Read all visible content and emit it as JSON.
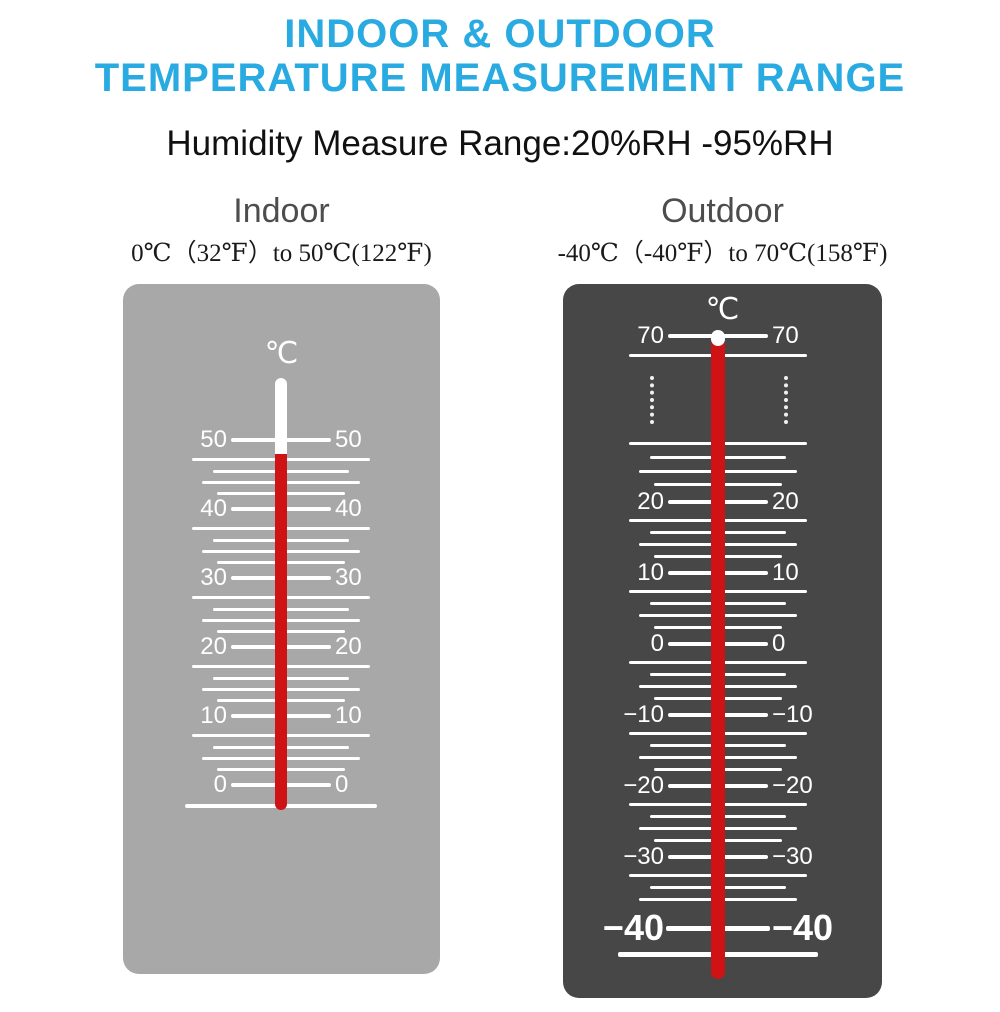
{
  "header": {
    "title1": "INDOOR & OUTDOOR",
    "title2": "TEMPERATURE MEASUREMENT RANGE",
    "humidity": "Humidity Measure Range:20%RH -95%RH",
    "title_color": "#29abe2"
  },
  "indoor": {
    "heading": "Indoor",
    "range": "0℃（32℉）to 50℃(122℉)",
    "unit": "℃",
    "panel_color": "#a8a8a8",
    "scale_labels": [
      "50",
      "40",
      "30",
      "20",
      "10",
      "0"
    ]
  },
  "outdoor": {
    "heading": "Outdoor",
    "range": "-40℃（-40℉）to 70℃(158℉)",
    "unit": "℃",
    "panel_color": "#474747",
    "scale_labels": [
      "70",
      "20",
      "10",
      "0",
      "−10",
      "−20",
      "−30",
      "−40"
    ]
  },
  "colors": {
    "mercury_red": "#cf1315",
    "tick_white": "#ffffff"
  }
}
